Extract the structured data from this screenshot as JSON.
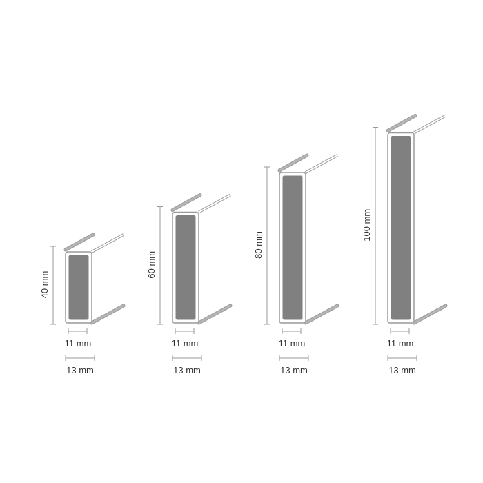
{
  "colors": {
    "fill": "#808080",
    "outline": "#9a9a9a",
    "rail": "#b5b5b5",
    "dimension": "#999999",
    "text": "#333333"
  },
  "profiles": [
    {
      "height_mm": 40,
      "height_label": "40 mm",
      "inner_width_label": "11 mm",
      "outer_width_label": "13 mm"
    },
    {
      "height_mm": 60,
      "height_label": "60 mm",
      "inner_width_label": "11 mm",
      "outer_width_label": "13 mm"
    },
    {
      "height_mm": 80,
      "height_label": "80 mm",
      "inner_width_label": "11 mm",
      "outer_width_label": "13 mm"
    },
    {
      "height_mm": 100,
      "height_label": "100 mm",
      "inner_width_label": "11 mm",
      "outer_width_label": "13 mm"
    }
  ]
}
